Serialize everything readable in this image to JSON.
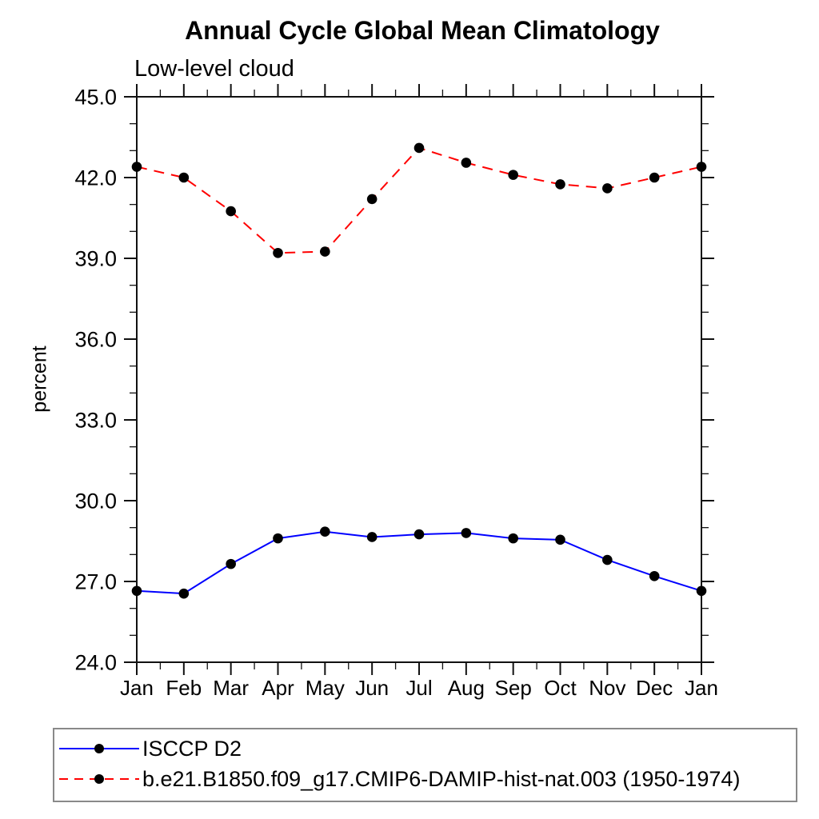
{
  "chart_data": {
    "type": "line",
    "title": "Annual Cycle Global Mean Climatology",
    "subtitle": "Low-level cloud",
    "ylabel": "percent",
    "xlabel": "",
    "categories": [
      "Jan",
      "Feb",
      "Mar",
      "Apr",
      "May",
      "Jun",
      "Jul",
      "Aug",
      "Sep",
      "Oct",
      "Nov",
      "Dec",
      "Jan"
    ],
    "ylim": [
      24.0,
      45.0
    ],
    "yticks": {
      "values": [
        24,
        27,
        30,
        33,
        36,
        39,
        42,
        45
      ],
      "labels": [
        "24.0",
        "27.0",
        "30.0",
        "33.0",
        "36.0",
        "39.0",
        "42.0",
        "45.0"
      ]
    },
    "yminor_step": 1.0,
    "xminor_step": 0.5,
    "grid": false,
    "legend": {
      "position": "bottom",
      "border": true
    },
    "series": [
      {
        "name": "ISCCP D2",
        "color": "#0000ff",
        "line_style": "solid",
        "marker": "filled-circle",
        "marker_color": "#000000",
        "values": [
          26.65,
          26.55,
          27.65,
          28.6,
          28.85,
          28.65,
          28.75,
          28.8,
          28.6,
          28.55,
          27.8,
          27.2,
          26.65
        ]
      },
      {
        "name": "b.e21.B1850.f09_g17.CMIP6-DAMIP-hist-nat.003 (1950-1974)",
        "color": "#ff0000",
        "line_style": "dashed",
        "marker": "filled-circle",
        "marker_color": "#000000",
        "values": [
          42.4,
          42.0,
          40.75,
          39.2,
          39.25,
          41.2,
          43.1,
          42.55,
          42.1,
          41.75,
          41.6,
          42.0,
          42.4
        ]
      }
    ]
  }
}
